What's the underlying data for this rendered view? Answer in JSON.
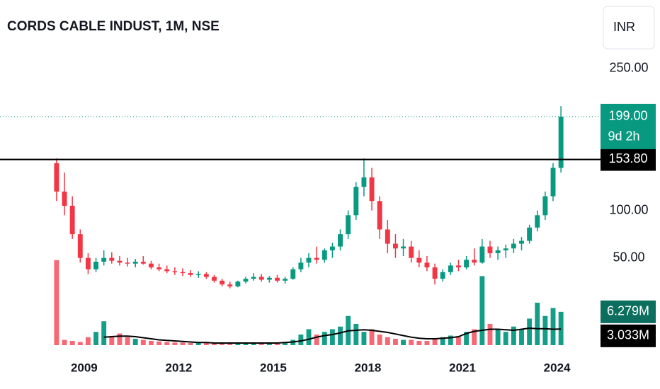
{
  "chart_data": {
    "type": "candlestick",
    "title": "CORDS CABLE INDUST, 1M, NSE",
    "currency": "INR",
    "up_color": "#089981",
    "down_color": "#f23645",
    "x": [
      2008.125,
      2008.375,
      2008.625,
      2008.875,
      2009.125,
      2009.375,
      2009.625,
      2009.875,
      2010.125,
      2010.375,
      2010.625,
      2010.875,
      2011.125,
      2011.375,
      2011.625,
      2011.875,
      2012.125,
      2012.375,
      2012.625,
      2012.875,
      2013.125,
      2013.375,
      2013.625,
      2013.875,
      2014.125,
      2014.375,
      2014.625,
      2014.875,
      2015.125,
      2015.375,
      2015.625,
      2015.875,
      2016.125,
      2016.375,
      2016.625,
      2016.875,
      2017.125,
      2017.375,
      2017.625,
      2017.875,
      2018.125,
      2018.375,
      2018.625,
      2018.875,
      2019.125,
      2019.375,
      2019.625,
      2019.875,
      2020.125,
      2020.375,
      2020.625,
      2020.875,
      2021.125,
      2021.375,
      2021.625,
      2021.875,
      2022.125,
      2022.375,
      2022.625,
      2022.875,
      2023.125,
      2023.375,
      2023.625,
      2023.875,
      2024.125
    ],
    "open": [
      150,
      120,
      105,
      75,
      50,
      38,
      46,
      50,
      47,
      45,
      44,
      46,
      44,
      40,
      38,
      36,
      35,
      34,
      32,
      33,
      30,
      26,
      22,
      20,
      25,
      28,
      30,
      27,
      29,
      26,
      28,
      38,
      45,
      50,
      48,
      58,
      62,
      75,
      95,
      125,
      135,
      110,
      80,
      65,
      60,
      62,
      50,
      45,
      40,
      28,
      35,
      42,
      40,
      48,
      45,
      62,
      55,
      58,
      60,
      65,
      68,
      82,
      95,
      115,
      145
    ],
    "high": [
      155,
      140,
      115,
      80,
      55,
      50,
      58,
      56,
      52,
      50,
      49,
      52,
      47,
      44,
      42,
      40,
      39,
      37,
      36,
      35,
      32,
      28,
      25,
      26,
      30,
      34,
      33,
      31,
      32,
      30,
      40,
      50,
      55,
      62,
      60,
      66,
      80,
      100,
      130,
      155,
      145,
      115,
      90,
      75,
      70,
      68,
      58,
      52,
      44,
      38,
      45,
      48,
      52,
      60,
      70,
      68,
      62,
      64,
      70,
      72,
      85,
      100,
      120,
      150,
      210
    ],
    "low": [
      110,
      95,
      70,
      45,
      33,
      35,
      42,
      44,
      42,
      41,
      40,
      43,
      38,
      36,
      34,
      32,
      31,
      30,
      29,
      28,
      24,
      20,
      18,
      19,
      23,
      26,
      25,
      24,
      24,
      23,
      27,
      35,
      40,
      44,
      45,
      50,
      58,
      70,
      90,
      115,
      100,
      70,
      55,
      50,
      52,
      45,
      40,
      36,
      22,
      25,
      32,
      36,
      38,
      42,
      44,
      50,
      48,
      50,
      55,
      58,
      65,
      78,
      90,
      110,
      140
    ],
    "close": [
      120,
      105,
      75,
      50,
      38,
      46,
      50,
      47,
      45,
      44,
      46,
      44,
      40,
      38,
      36,
      35,
      34,
      32,
      33,
      30,
      26,
      22,
      20,
      25,
      28,
      30,
      27,
      29,
      26,
      28,
      38,
      45,
      50,
      48,
      58,
      62,
      75,
      95,
      125,
      135,
      110,
      80,
      65,
      60,
      62,
      50,
      45,
      40,
      28,
      35,
      42,
      40,
      48,
      45,
      62,
      55,
      58,
      60,
      65,
      68,
      82,
      95,
      115,
      145,
      199
    ],
    "volume": [
      16,
      1.0,
      0.8,
      0.6,
      1.5,
      2.5,
      4.5,
      1.5,
      2.2,
      1.5,
      1.2,
      1.0,
      0.8,
      0.7,
      0.6,
      0.5,
      0.5,
      0.4,
      0.4,
      0.4,
      0.3,
      0.3,
      0.3,
      0.4,
      0.4,
      0.5,
      0.4,
      0.5,
      0.5,
      0.6,
      1.0,
      2.0,
      3.0,
      2.0,
      2.5,
      3.0,
      3.5,
      5.5,
      4.0,
      2.5,
      3.0,
      2.0,
      1.5,
      1.2,
      1.0,
      1.0,
      0.8,
      0.8,
      1.2,
      1.5,
      1.8,
      1.5,
      2.5,
      3.0,
      13,
      4.0,
      3.0,
      2.5,
      3.5,
      3.0,
      5.0,
      8.0,
      5.5,
      7.0,
      6.279
    ],
    "volume_ma": [
      null,
      null,
      null,
      null,
      null,
      null,
      1.5,
      1.6,
      1.7,
      1.7,
      1.6,
      1.4,
      1.2,
      1.0,
      0.9,
      0.8,
      0.7,
      0.6,
      0.5,
      0.5,
      0.4,
      0.4,
      0.4,
      0.4,
      0.4,
      0.4,
      0.4,
      0.4,
      0.4,
      0.5,
      0.6,
      0.8,
      1.1,
      1.5,
      1.8,
      2.0,
      2.3,
      2.7,
      2.8,
      2.9,
      2.8,
      2.6,
      2.4,
      2.1,
      1.8,
      1.5,
      1.3,
      1.2,
      1.2,
      1.3,
      1.4,
      1.6,
      2.2,
      2.6,
      2.8,
      3.0,
      3.0,
      2.9,
      2.8,
      3.0,
      3.2,
      3.1,
      3.1,
      3.0,
      3.033
    ],
    "xlim": [
      2006.33,
      2025.2
    ],
    "xticks": [
      2009,
      2012,
      2015,
      2018,
      2021,
      2024
    ],
    "ylim": [
      -42,
      322
    ],
    "yticks": [
      {
        "value": 50,
        "label": "50.00"
      },
      {
        "value": 100,
        "label": "100.00"
      },
      {
        "value": 250,
        "label": "250.00"
      }
    ],
    "y2lim": [
      0,
      65
    ],
    "last_price": {
      "value": 199,
      "label": "199.00"
    },
    "countdown": "9d 2h",
    "hline": {
      "value": 153.8,
      "label": "153.80"
    },
    "volume_last": {
      "value": 6.279,
      "label": "6.279M"
    },
    "volume_ma_last": {
      "value": 3.033,
      "label": "3.033M"
    }
  }
}
